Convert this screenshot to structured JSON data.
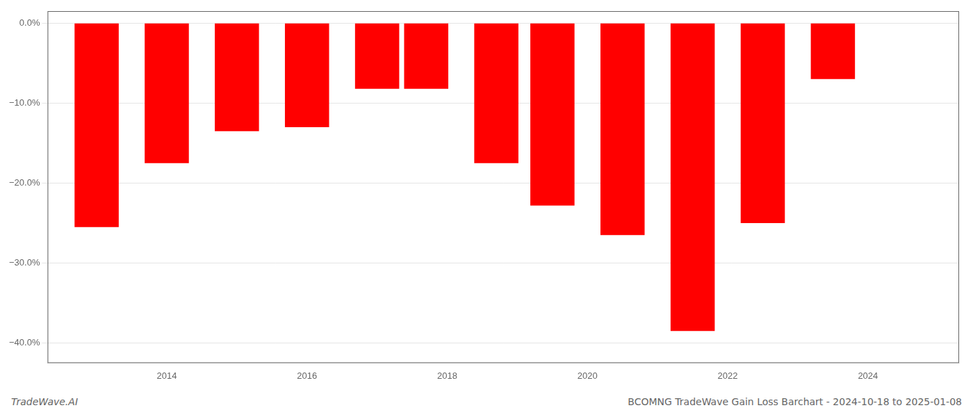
{
  "chart_data": {
    "type": "bar",
    "title": "BCOMNG TradeWave Gain Loss Barchart - 2024-10-18 to 2025-01-08",
    "annotations": [
      {
        "text": "TradeWave.AI"
      }
    ],
    "x": [
      2013,
      2014,
      2015,
      2016,
      2017,
      2017.7,
      2018.7,
      2019.5,
      2020.5,
      2021.5,
      2022.5,
      2023.5
    ],
    "values": [
      -0.255,
      -0.175,
      -0.135,
      -0.13,
      -0.082,
      -0.082,
      -0.175,
      -0.228,
      -0.265,
      -0.385,
      -0.25,
      -0.07
    ],
    "color": "#ff0000",
    "xlim": [
      2012.3,
      2025.3
    ],
    "ylim": [
      -0.425,
      0.015
    ],
    "xticks": [
      2014,
      2016,
      2018,
      2020,
      2022,
      2024
    ],
    "yticks": [
      {
        "value": 0.0,
        "label": "0.0%"
      },
      {
        "value": -0.1,
        "label": "−10.0%"
      },
      {
        "value": -0.2,
        "label": "−20.0%"
      },
      {
        "value": -0.3,
        "label": "−30.0%"
      },
      {
        "value": -0.4,
        "label": "−40.0%"
      }
    ],
    "grid": true
  }
}
